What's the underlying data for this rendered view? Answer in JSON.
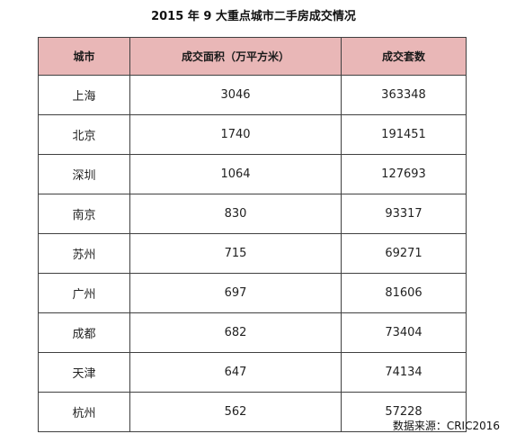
{
  "title": "2015 年 9 大重点城市二手房成交情况",
  "table": {
    "headers": [
      "城市",
      "成交面积（万平方米）",
      "成交套数"
    ],
    "rows": [
      [
        "上海",
        "3046",
        "363348"
      ],
      [
        "北京",
        "1740",
        "191451"
      ],
      [
        "深圳",
        "1064",
        "127693"
      ],
      [
        "南京",
        "830",
        "93317"
      ],
      [
        "苏州",
        "715",
        "69271"
      ],
      [
        "广州",
        "697",
        "81606"
      ],
      [
        "成都",
        "682",
        "73404"
      ],
      [
        "天津",
        "647",
        "74134"
      ],
      [
        "杭州",
        "562",
        "57228"
      ]
    ]
  },
  "source": "数据来源：CRIC2016",
  "colors": {
    "header_background": "#e9b7b7",
    "border": "#404040"
  }
}
